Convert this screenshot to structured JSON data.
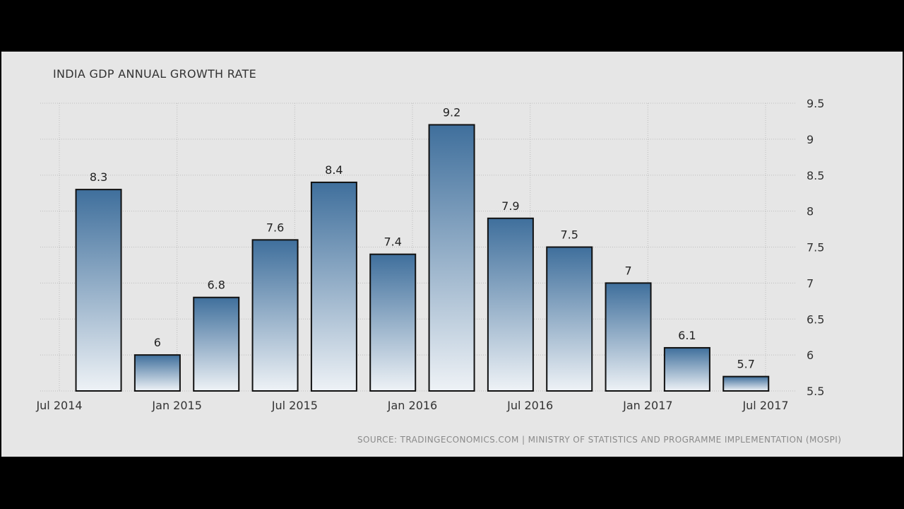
{
  "chart_data": {
    "type": "bar",
    "title": "INDIA GDP ANNUAL GROWTH RATE",
    "source": "SOURCE: TRADINGECONOMICS.COM | MINISTRY OF STATISTICS AND PROGRAMME IMPLEMENTATION (MOSPI)",
    "x_tick_labels": [
      "Jul 2014",
      "Jan 2015",
      "Jul 2015",
      "Jan 2016",
      "Jul 2016",
      "Jan 2017",
      "Jul 2017"
    ],
    "y_tick_labels": [
      "9.5",
      "9",
      "8.5",
      "8",
      "7.5",
      "7",
      "6.5",
      "6",
      "5.5"
    ],
    "ylim": [
      5.5,
      9.5
    ],
    "grid": true,
    "y_axis_position": "right",
    "bar_color_top": "#3f6f9c",
    "bar_color_bottom": "#eef2f6",
    "points": [
      {
        "date": "2014-09",
        "value": 8.3,
        "label": "8.3"
      },
      {
        "date": "2014-12",
        "value": 6.0,
        "label": "6"
      },
      {
        "date": "2015-03",
        "value": 6.8,
        "label": "6.8"
      },
      {
        "date": "2015-06",
        "value": 7.6,
        "label": "7.6"
      },
      {
        "date": "2015-09",
        "value": 8.4,
        "label": "8.4"
      },
      {
        "date": "2015-12",
        "value": 7.4,
        "label": "7.4"
      },
      {
        "date": "2016-03",
        "value": 9.2,
        "label": "9.2"
      },
      {
        "date": "2016-06",
        "value": 7.9,
        "label": "7.9"
      },
      {
        "date": "2016-09",
        "value": 7.5,
        "label": "7.5"
      },
      {
        "date": "2016-12",
        "value": 7.0,
        "label": "7"
      },
      {
        "date": "2017-03",
        "value": 6.1,
        "label": "6.1"
      },
      {
        "date": "2017-06",
        "value": 5.7,
        "label": "5.7"
      }
    ]
  }
}
